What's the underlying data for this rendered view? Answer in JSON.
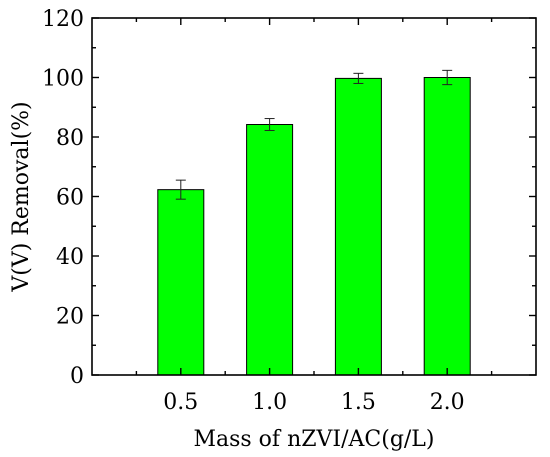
{
  "chart_data": {
    "type": "bar",
    "title": "",
    "xlabel": "Mass of nZVI/AC(g/L)",
    "ylabel": "V(V) Removal(%)",
    "categories": [
      "0.5",
      "1.0",
      "1.5",
      "2.0"
    ],
    "values": [
      62.3,
      84.2,
      99.7,
      100.0
    ],
    "error": [
      3.2,
      2.0,
      1.7,
      2.4
    ],
    "ylim": [
      0,
      120
    ],
    "yticks": [
      "0",
      "20",
      "40",
      "60",
      "80",
      "100",
      "120"
    ],
    "bar_color": "#00ff00",
    "grid": false,
    "legend": "none"
  }
}
